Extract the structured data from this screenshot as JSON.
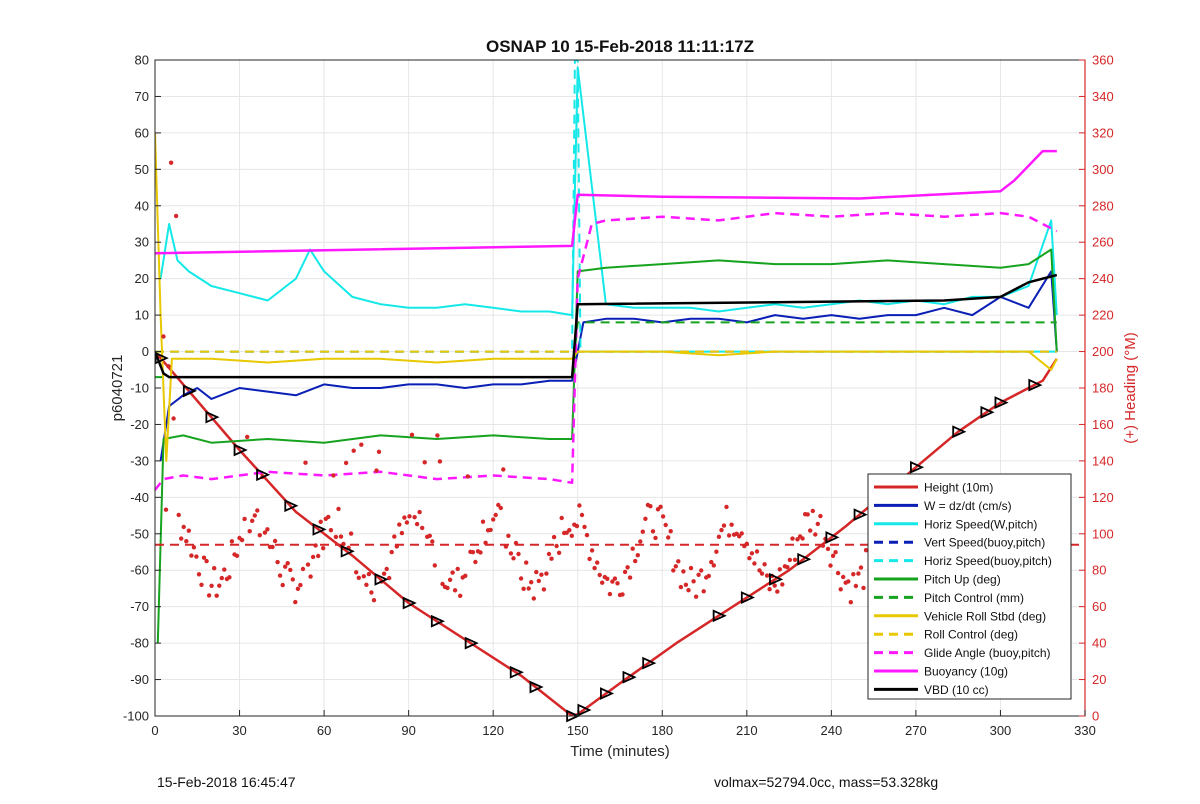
{
  "chart_data": {
    "type": "line",
    "title": "OSNAP 10 15-Feb-2018 11:11:17Z",
    "xlabel": "Time (minutes)",
    "ylabel": "p6040721",
    "ylabel_right": "(+) Heading (°M)",
    "xlim": [
      0,
      330
    ],
    "ylim": [
      -100,
      80
    ],
    "ylim_right": [
      0,
      360
    ],
    "xticks": [
      0,
      30,
      60,
      90,
      120,
      150,
      180,
      210,
      240,
      270,
      300,
      330
    ],
    "yticks": [
      -100,
      -90,
      -80,
      -70,
      -60,
      -50,
      -40,
      -30,
      -20,
      -10,
      0,
      10,
      20,
      30,
      40,
      50,
      60,
      70,
      80
    ],
    "yticks_right": [
      0,
      20,
      40,
      60,
      80,
      100,
      120,
      140,
      160,
      180,
      200,
      220,
      240,
      260,
      280,
      300,
      320,
      340,
      360
    ],
    "grid": true,
    "legend_position": "bottom-right",
    "colors": {
      "right_axis": "#d62728",
      "axis": "#262626",
      "grid": "#e6e6e6"
    },
    "series": [
      {
        "name": "Height (10m)",
        "color": "#d62728",
        "style": "solid",
        "width": 2.5,
        "x": [
          0,
          10,
          30,
          50,
          70,
          90,
          110,
          130,
          148,
          150,
          165,
          185,
          205,
          225,
          245,
          265,
          285,
          300,
          315,
          320
        ],
        "y": [
          0,
          -9,
          -27,
          -44,
          -56,
          -69,
          -79,
          -89,
          -100,
          -99.5,
          -91,
          -80,
          -70,
          -60,
          -48,
          -35,
          -22,
          -14,
          -8,
          -2
        ]
      },
      {
        "name": "W = dz/dt (cm/s)",
        "color": "#0a1fb5",
        "style": "solid",
        "width": 2,
        "x": [
          2,
          5,
          10,
          15,
          20,
          30,
          40,
          50,
          60,
          70,
          80,
          90,
          100,
          110,
          120,
          130,
          140,
          148,
          152,
          160,
          170,
          180,
          190,
          200,
          210,
          220,
          230,
          240,
          250,
          260,
          270,
          280,
          290,
          300,
          310,
          318,
          320
        ],
        "y": [
          -30,
          -15,
          -12,
          -10,
          -13,
          -10,
          -11,
          -12,
          -9,
          -10,
          -10,
          -9,
          -9,
          -10,
          -9,
          -9,
          -8,
          -8,
          8,
          9,
          9,
          8,
          9,
          9,
          8,
          10,
          9,
          10,
          9,
          10,
          10,
          12,
          10,
          15,
          12,
          22,
          0
        ]
      },
      {
        "name": "Horiz Speed(W,pitch)",
        "color": "#14e8e8",
        "style": "solid",
        "width": 2,
        "x": [
          2,
          5,
          8,
          12,
          20,
          30,
          40,
          50,
          55,
          60,
          70,
          80,
          90,
          100,
          110,
          120,
          130,
          140,
          148,
          150,
          160,
          170,
          180,
          190,
          200,
          210,
          220,
          230,
          240,
          250,
          260,
          270,
          280,
          290,
          300,
          310,
          318,
          320
        ],
        "y": [
          20,
          35,
          25,
          22,
          18,
          16,
          14,
          20,
          28,
          22,
          15,
          13,
          12,
          12,
          13,
          12,
          11,
          11,
          10,
          78,
          13,
          12,
          12,
          12,
          11,
          12,
          13,
          12,
          13,
          14,
          13,
          14,
          13,
          15,
          15,
          18,
          36,
          10
        ]
      },
      {
        "name": "Vert Speed(buoy,pitch)",
        "color": "#0a1fb5",
        "style": "dashed",
        "width": 2,
        "x": [
          0,
          148,
          150,
          320
        ],
        "y": [
          0,
          0,
          0,
          0
        ]
      },
      {
        "name": "Horiz Speed(buoy,pitch)",
        "color": "#14e8e8",
        "style": "dashed",
        "width": 2,
        "x": [
          0,
          146,
          148,
          149,
          150,
          151,
          152,
          320
        ],
        "y": [
          0,
          0,
          0,
          80,
          80,
          0,
          0,
          0
        ]
      },
      {
        "name": "Pitch Up (deg)",
        "color": "#16a31f",
        "style": "solid",
        "width": 2,
        "x": [
          1,
          3,
          10,
          20,
          40,
          60,
          80,
          100,
          120,
          140,
          148,
          150,
          160,
          180,
          200,
          220,
          240,
          260,
          280,
          300,
          310,
          318,
          320
        ],
        "y": [
          -80,
          -24,
          -23,
          -25,
          -24,
          -25,
          -23,
          -24,
          -23,
          -24,
          -24,
          22,
          23,
          24,
          25,
          24,
          24,
          25,
          24,
          23,
          24,
          28,
          0
        ]
      },
      {
        "name": "Pitch Control (mm)",
        "color": "#16a31f",
        "style": "dashed",
        "width": 2,
        "x": [
          0,
          148,
          150,
          320
        ],
        "y": [
          -7,
          -7,
          8,
          8
        ]
      },
      {
        "name": "Vehicle Roll Stbd (deg)",
        "color": "#e8c800",
        "style": "solid",
        "width": 2,
        "x": [
          0,
          2,
          4,
          6,
          20,
          40,
          60,
          80,
          100,
          120,
          140,
          148,
          150,
          160,
          180,
          200,
          220,
          240,
          260,
          280,
          300,
          310,
          318,
          320
        ],
        "y": [
          60,
          10,
          -30,
          -2,
          -2,
          -3,
          -2,
          -2,
          -3,
          -2,
          -2,
          -2,
          0,
          0,
          0,
          -1,
          0,
          0,
          0,
          0,
          0,
          0,
          -5,
          -2
        ]
      },
      {
        "name": "Roll Control (deg)",
        "color": "#e8c800",
        "style": "dashed",
        "width": 2,
        "x": [
          0,
          148,
          150,
          320
        ],
        "y": [
          0,
          0,
          0,
          0
        ]
      },
      {
        "name": "Glide Angle (buoy,pitch)",
        "color": "#ff18ff",
        "style": "dashed",
        "width": 2.5,
        "x": [
          0,
          3,
          10,
          20,
          40,
          60,
          80,
          100,
          120,
          140,
          148,
          150,
          155,
          160,
          180,
          200,
          220,
          240,
          260,
          280,
          300,
          310,
          320
        ],
        "y": [
          -38,
          -35,
          -34,
          -35,
          -33,
          -34,
          -33,
          -35,
          -34,
          -35,
          -36,
          20,
          35,
          36,
          37,
          36,
          38,
          37,
          38,
          37,
          38,
          37,
          33
        ]
      },
      {
        "name": "Buoyancy (10g)",
        "color": "#ff18ff",
        "style": "solid",
        "width": 2.5,
        "x": [
          0,
          148,
          150,
          180,
          250,
          300,
          305,
          315,
          320
        ],
        "y": [
          27,
          29,
          43,
          42.5,
          42,
          44,
          47,
          55,
          55
        ]
      },
      {
        "name": "VBD (10 cc)",
        "color": "#000000",
        "style": "solid",
        "width": 2.5,
        "x": [
          0,
          3,
          5,
          148,
          150,
          280,
          300,
          305,
          310,
          320
        ],
        "y": [
          0,
          -6,
          -7,
          -7,
          13,
          14,
          15,
          17,
          19,
          21
        ]
      }
    ]
  },
  "footer": {
    "left": "15-Feb-2018 16:45:47",
    "right": "volmax=52794.0cc, mass=53.328kg"
  }
}
